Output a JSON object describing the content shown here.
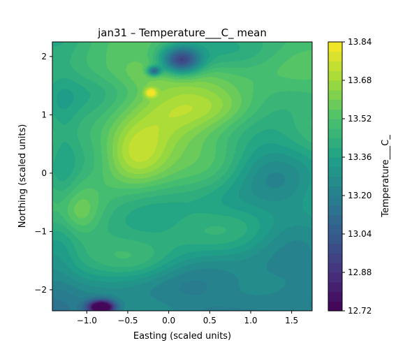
{
  "chart_data": {
    "type": "heatmap",
    "subtype": "filled-contour",
    "title": "jan31 – Temperature___C_ mean",
    "xlabel": "Easting (scaled units)",
    "ylabel": "Northing (scaled units)",
    "xlim": [
      -1.42,
      1.75
    ],
    "ylim": [
      -2.36,
      2.25
    ],
    "xticks": [
      -1.0,
      -0.5,
      0.0,
      0.5,
      1.0,
      1.5
    ],
    "xtick_labels": [
      "−1.0",
      "−0.5",
      "0.0",
      "0.5",
      "1.0",
      "1.5"
    ],
    "yticks": [
      -2,
      -1,
      0,
      1,
      2
    ],
    "ytick_labels": [
      "−2",
      "−1",
      "0",
      "1",
      "2"
    ],
    "colorbar": {
      "label": "Temperature___C_",
      "min": 12.72,
      "max": 13.84,
      "level_step": 0.04,
      "ticks": [
        12.72,
        12.88,
        13.04,
        13.2,
        13.36,
        13.52,
        13.68,
        13.84
      ],
      "tick_labels": [
        "12.72",
        "12.88",
        "13.04",
        "13.20",
        "13.36",
        "13.52",
        "13.68",
        "13.84"
      ],
      "colormap": "viridis",
      "colors": [
        "#440154",
        "#46327e",
        "#365c8d",
        "#277f8e",
        "#1fa187",
        "#4ac16d",
        "#a0da39",
        "#fde725"
      ]
    },
    "field": {
      "base": 13.36,
      "features": [
        {
          "kind": "warm",
          "x": -0.45,
          "y": 0.35,
          "value": 13.7,
          "label": "central-west warm plateau"
        },
        {
          "kind": "warm",
          "x": 0.55,
          "y": 1.15,
          "value": 13.62,
          "label": "north-east warm area"
        },
        {
          "kind": "warm",
          "x": -0.22,
          "y": 1.38,
          "value": 13.76,
          "label": "small warm spot"
        },
        {
          "kind": "cold",
          "x": 0.15,
          "y": 1.92,
          "value": 13.0,
          "label": "northern cold core"
        },
        {
          "kind": "cold",
          "x": -0.18,
          "y": 1.75,
          "value": 13.04,
          "label": "secondary northern cold cell"
        },
        {
          "kind": "cold",
          "x": -0.82,
          "y": -2.28,
          "value": 12.72,
          "label": "southern cold minimum"
        },
        {
          "kind": "cool",
          "x": 1.35,
          "y": -0.9,
          "value": 13.28,
          "label": "eastern cooler region"
        }
      ]
    }
  }
}
